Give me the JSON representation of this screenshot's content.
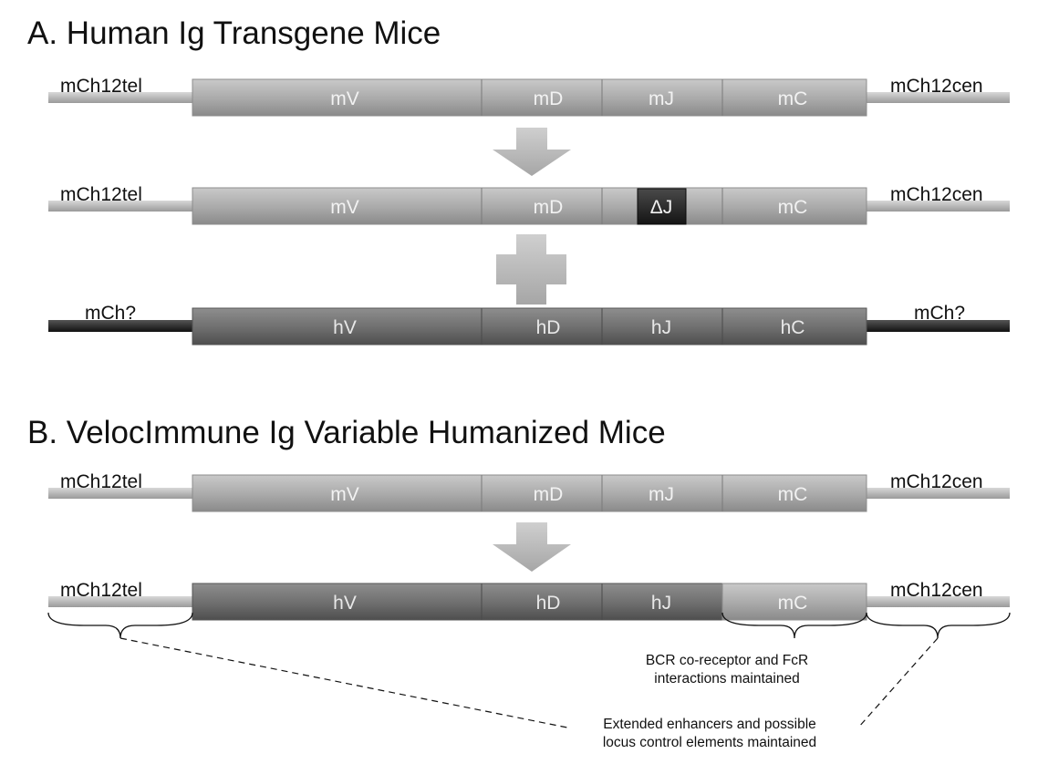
{
  "sectionA": {
    "title": "A. Human Ig Transgene Mice",
    "rows": [
      {
        "left": "mCh12tel",
        "right": "mCh12cen",
        "segments": [
          "mV",
          "mD",
          "mJ",
          "mC"
        ]
      },
      {
        "left": "mCh12tel",
        "right": "mCh12cen",
        "segments": [
          "mV",
          "mD",
          "ΔJ",
          "mC"
        ]
      },
      {
        "left": "mCh?",
        "right": "mCh?",
        "segments": [
          "hV",
          "hD",
          "hJ",
          "hC"
        ]
      }
    ]
  },
  "sectionB": {
    "title": "B. VelocImmune Ig Variable Humanized Mice",
    "rows": [
      {
        "left": "mCh12tel",
        "right": "mCh12cen",
        "segments": [
          "mV",
          "mD",
          "mJ",
          "mC"
        ]
      },
      {
        "left": "mCh12tel",
        "right": "mCh12cen",
        "segments": [
          "hV",
          "hD",
          "hJ",
          "mC"
        ]
      }
    ],
    "note_bcr": [
      "BCR co-receptor and FcR",
      "interactions maintained"
    ],
    "note_enhancers": [
      "Extended enhancers and possible",
      "locus control elements maintained"
    ]
  }
}
